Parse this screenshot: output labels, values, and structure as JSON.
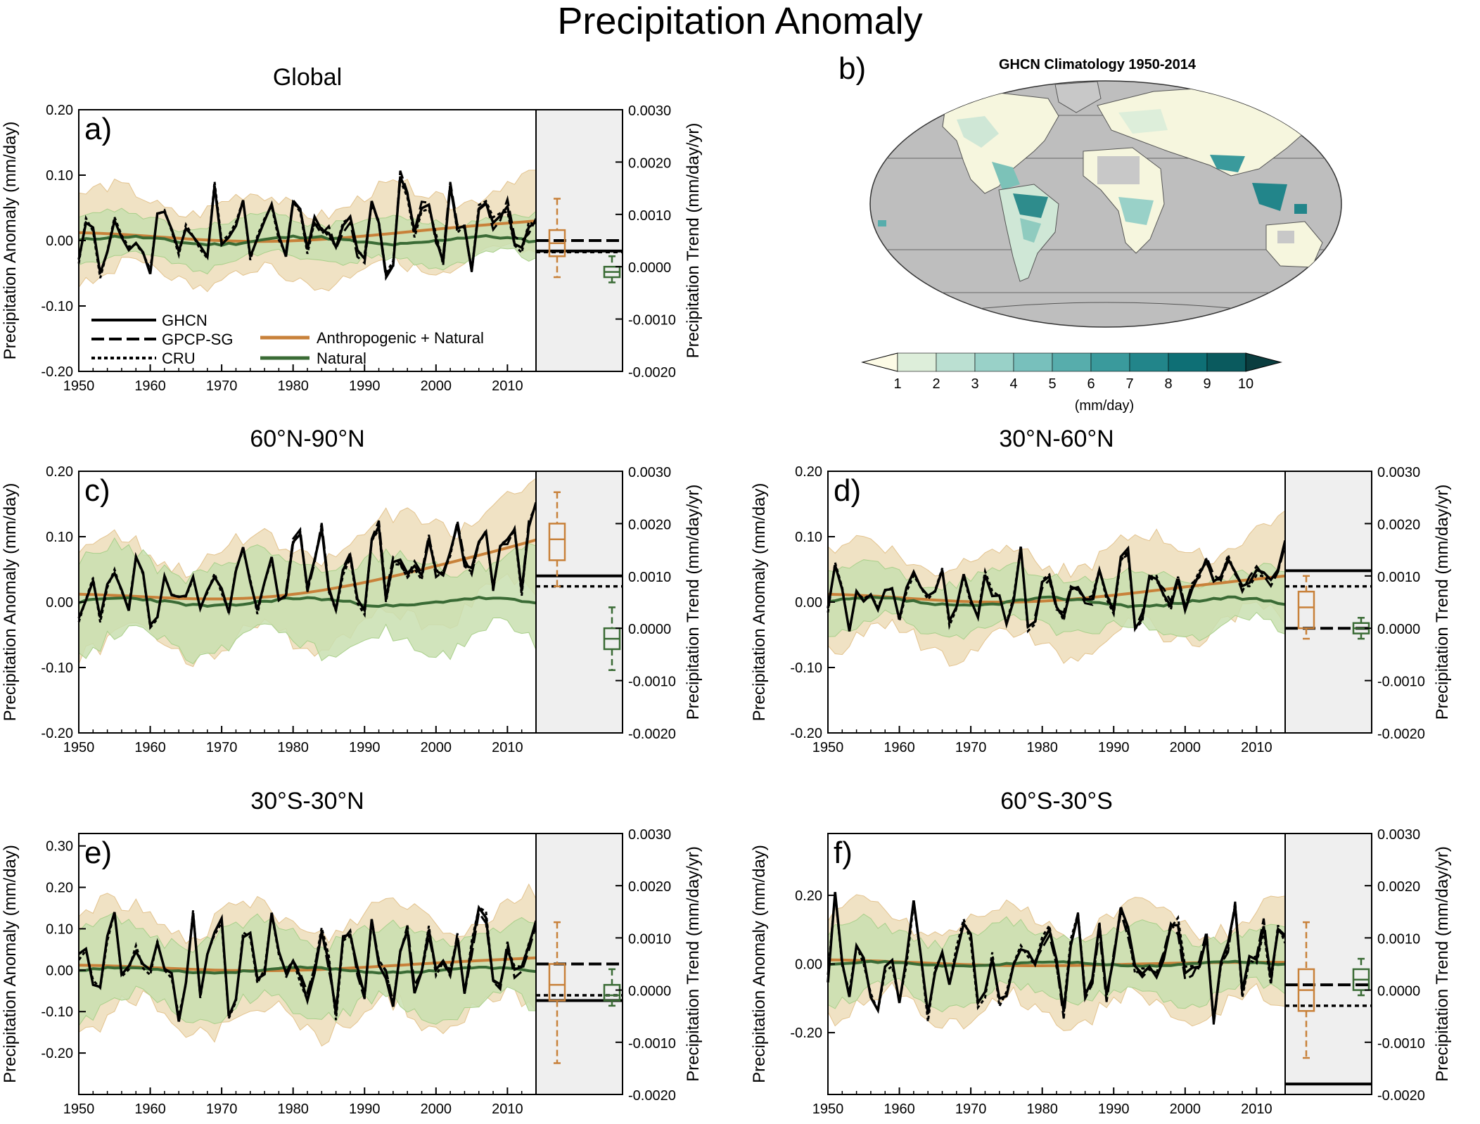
{
  "title": "Precipitation Anomaly",
  "legend": {
    "obs": [
      "GHCN",
      "GPCP-SG",
      "CRU"
    ],
    "models": [
      "Anthropogenic + Natural",
      "Natural"
    ]
  },
  "colors": {
    "anthro": "#C8813A",
    "natural": "#3A6B35",
    "anthro_band": "#F0E2C4",
    "natural_band": "#C9DFB0",
    "trend_bg": "#EFEFEF",
    "map_ocean": "#BEBEBE",
    "map_missing": "#C8C8C8"
  },
  "map": {
    "letter": "b)",
    "title": "GHCN Climatology 1950-2014",
    "colorbar_ticks": [
      "1",
      "2",
      "3",
      "4",
      "5",
      "6",
      "7",
      "8",
      "9",
      "10"
    ],
    "colorbar_colors": [
      "#FDFBE6",
      "#DDEEDA",
      "#BBE0D2",
      "#99D1C8",
      "#78C0BC",
      "#57ADAC",
      "#3A9A9C",
      "#22858A",
      "#0E6F75",
      "#0A5A5E",
      "#0A3D3F"
    ],
    "colorbar_label": "(mm/day)"
  },
  "chart_data": [
    {
      "type": "line",
      "letter": "a)",
      "title": "Global",
      "xlabel": "",
      "ylabel": "Precipitation Anomaly (mm/day)",
      "y2label": "Precipitation Trend (mm/day/yr)",
      "xlim": [
        1950,
        2014
      ],
      "x_ticks": [
        "1950",
        "1960",
        "1970",
        "1980",
        "1990",
        "2000",
        "2010"
      ],
      "ylim": [
        -0.2,
        0.2
      ],
      "y_ticks": [
        {
          "v": 0.2,
          "label": "0.20"
        },
        {
          "v": 0.1,
          "label": "0.10"
        },
        {
          "v": 0.0,
          "label": "0.00"
        },
        {
          "v": -0.1,
          "label": "-0.10"
        },
        {
          "v": -0.2,
          "label": "-0.20"
        }
      ],
      "y2lim": [
        -0.002,
        0.003
      ],
      "y2_ticks": [
        "0.0030",
        "0.0020",
        "0.0010",
        "0.0000",
        "-0.0010",
        "-0.0020"
      ],
      "seed": 11,
      "amp": 0.05,
      "drift": 0.00045,
      "gpcp_start": 1979,
      "anthro_end": 0.03,
      "anthro_band": 0.055,
      "natural_band": 0.03,
      "trends": {
        "ghcn": 0.0003,
        "gpcp": 0.0005,
        "cru": 0.00028
      },
      "box_anthro": {
        "lo": -0.0002,
        "q1": 0.0002,
        "med": 0.00045,
        "q3": 0.0007,
        "hi": 0.0013
      },
      "box_natural": {
        "lo": -0.0003,
        "q1": -0.0002,
        "med": -0.0001,
        "q3": 0.0,
        "hi": 0.0002
      }
    },
    {
      "type": "line",
      "letter": "c)",
      "title": "60°N-90°N",
      "xlabel": "",
      "ylabel": "Precipitation Anomaly (mm/day)",
      "y2label": "Precipitation Trend (mm/day/yr)",
      "xlim": [
        1950,
        2014
      ],
      "x_ticks": [
        "1950",
        "1960",
        "1970",
        "1980",
        "1990",
        "2000",
        "2010"
      ],
      "ylim": [
        -0.2,
        0.2
      ],
      "y_ticks": [
        {
          "v": 0.2,
          "label": "0.20"
        },
        {
          "v": 0.1,
          "label": "0.10"
        },
        {
          "v": 0.0,
          "label": "0.00"
        },
        {
          "v": -0.1,
          "label": "-0.10"
        },
        {
          "v": -0.2,
          "label": "-0.20"
        }
      ],
      "y2lim": [
        -0.002,
        0.003
      ],
      "y2_ticks": [
        "0.0030",
        "0.0020",
        "0.0010",
        "0.0000",
        "-0.0010",
        "-0.0020"
      ],
      "seed": 23,
      "amp": 0.045,
      "drift": 0.0013,
      "gpcp_start": 1979,
      "anthro_end": 0.095,
      "anthro_band": 0.07,
      "natural_band": 0.06,
      "trends": {
        "ghcn": 0.001,
        "gpcp": null,
        "cru": 0.0008
      },
      "box_anthro": {
        "lo": 0.0008,
        "q1": 0.0013,
        "med": 0.0017,
        "q3": 0.002,
        "hi": 0.0026
      },
      "box_natural": {
        "lo": -0.0008,
        "q1": -0.0004,
        "med": -0.0002,
        "q3": 0.0,
        "hi": 0.0004
      }
    },
    {
      "type": "line",
      "letter": "d)",
      "title": "30°N-60°N",
      "xlabel": "",
      "ylabel": "Precipitation Anomaly (mm/day)",
      "y2label": "Precipitation Trend (mm/day/yr)",
      "xlim": [
        1950,
        2014
      ],
      "x_ticks": [
        "1950",
        "1960",
        "1970",
        "1980",
        "1990",
        "2000",
        "2010"
      ],
      "ylim": [
        -0.2,
        0.2
      ],
      "y_ticks": [
        {
          "v": 0.2,
          "label": "0.20"
        },
        {
          "v": 0.1,
          "label": "0.10"
        },
        {
          "v": 0.0,
          "label": "0.00"
        },
        {
          "v": -0.1,
          "label": "-0.10"
        },
        {
          "v": -0.2,
          "label": "-0.20"
        }
      ],
      "y2lim": [
        -0.002,
        0.003
      ],
      "y2_ticks": [
        "0.0030",
        "0.0020",
        "0.0010",
        "0.0000",
        "-0.0010",
        "-0.0020"
      ],
      "seed": 37,
      "amp": 0.045,
      "drift": 0.0006,
      "gpcp_start": 1979,
      "anthro_end": 0.04,
      "anthro_band": 0.065,
      "natural_band": 0.04,
      "trends": {
        "ghcn": 0.0011,
        "gpcp": 0.0,
        "cru": 0.0008
      },
      "box_anthro": {
        "lo": -0.0002,
        "q1": 0.0,
        "med": 0.0004,
        "q3": 0.0007,
        "hi": 0.001
      },
      "box_natural": {
        "lo": -0.0002,
        "q1": -0.0001,
        "med": 0.0,
        "q3": 0.0001,
        "hi": 0.0002
      }
    },
    {
      "type": "line",
      "letter": "e)",
      "title": "30°S-30°N",
      "xlabel": "",
      "ylabel": "Precipitation Anomaly (mm/day)",
      "y2label": "Precipitation Trend (mm/day/yr)",
      "xlim": [
        1950,
        2014
      ],
      "x_ticks": [
        "1950",
        "1960",
        "1970",
        "1980",
        "1990",
        "2000",
        "2010"
      ],
      "ylim": [
        -0.3,
        0.33
      ],
      "y_ticks": [
        {
          "v": 0.3,
          "label": "0.30"
        },
        {
          "v": 0.2,
          "label": "0.20"
        },
        {
          "v": 0.1,
          "label": "0.10"
        },
        {
          "v": 0.0,
          "label": "0.00"
        },
        {
          "v": -0.1,
          "label": "-0.10"
        },
        {
          "v": -0.2,
          "label": "-0.20"
        }
      ],
      "y2lim": [
        -0.002,
        0.003
      ],
      "y2_ticks": [
        "0.0030",
        "0.0020",
        "0.0010",
        "0.0000",
        "-0.0010",
        "-0.0020"
      ],
      "seed": 53,
      "amp": 0.09,
      "drift": 0.0006,
      "gpcp_start": 1979,
      "anthro_end": 0.03,
      "anthro_band": 0.12,
      "natural_band": 0.09,
      "trends": {
        "ghcn": -0.0002,
        "gpcp": 0.0005,
        "cru": -0.0001
      },
      "box_anthro": {
        "lo": -0.0014,
        "q1": -0.0002,
        "med": 0.0001,
        "q3": 0.0005,
        "hi": 0.0013
      },
      "box_natural": {
        "lo": -0.0003,
        "q1": -0.0002,
        "med": -0.0001,
        "q3": 0.0001,
        "hi": 0.0004
      }
    },
    {
      "type": "line",
      "letter": "f)",
      "title": "60°S-30°S",
      "xlabel": "",
      "ylabel": "Precipitation Anomaly (mm/day)",
      "y2label": "Precipitation Trend (mm/day/yr)",
      "xlim": [
        1950,
        2014
      ],
      "x_ticks": [
        "1950",
        "1960",
        "1970",
        "1980",
        "1990",
        "2000",
        "2010"
      ],
      "ylim": [
        -0.38,
        0.38
      ],
      "y_ticks": [
        {
          "v": 0.2,
          "label": "0.20"
        },
        {
          "v": 0.0,
          "label": "0.00"
        },
        {
          "v": -0.2,
          "label": "-0.20"
        }
      ],
      "y2lim": [
        -0.002,
        0.003
      ],
      "y2_ticks": [
        "0.0030",
        "0.0020",
        "0.0010",
        "0.0000",
        "-0.0010",
        "-0.0020"
      ],
      "seed": 71,
      "amp": 0.13,
      "drift": 0.0002,
      "gpcp_start": 1979,
      "anthro_end": 0.005,
      "anthro_band": 0.13,
      "natural_band": 0.09,
      "trends": {
        "ghcn": -0.0018,
        "gpcp": 0.0001,
        "cru": -0.0003
      },
      "box_anthro": {
        "lo": -0.0013,
        "q1": -0.0004,
        "med": 0.0,
        "q3": 0.0004,
        "hi": 0.0013
      },
      "box_natural": {
        "lo": -0.0001,
        "q1": 0.0,
        "med": 0.0002,
        "q3": 0.0004,
        "hi": 0.0006
      }
    }
  ]
}
